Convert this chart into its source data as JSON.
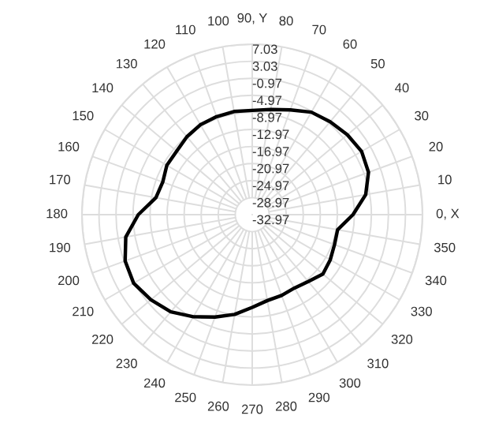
{
  "chart_data": {
    "type": "radar",
    "categories": [
      "90, Y",
      "80",
      "70",
      "60",
      "50",
      "40",
      "30",
      "20",
      "10",
      "0, X",
      "350",
      "340",
      "330",
      "320",
      "310",
      "300",
      "290",
      "280",
      "270",
      "260",
      "250",
      "240",
      "230",
      "220",
      "210",
      "200",
      "190",
      "180",
      "170",
      "160",
      "150",
      "140",
      "130",
      "120",
      "110",
      "100"
    ],
    "series": [
      {
        "color": "#000000",
        "values": [
          -8.5,
          -7.9,
          -6.8,
          -5.2,
          -4.5,
          -3.8,
          -3.3,
          -3.9,
          -5.9,
          -9.3,
          -12.6,
          -12.4,
          -11.8,
          -11.3,
          -12.5,
          -13.1,
          -12.8,
          -12.5,
          -11.2,
          -9.2,
          -7.4,
          -5.3,
          -3.2,
          -1.9,
          -0.8,
          -1.2,
          -2.8,
          -6.2,
          -10.0,
          -10.6,
          -9.8,
          -9.8,
          -9.1,
          -8.6,
          -8.5,
          -8.4
        ]
      }
    ],
    "ylim": [
      -32.97,
      7.03
    ],
    "yticks": [
      7.03,
      3.03,
      -0.97,
      -4.97,
      -8.97,
      -12.97,
      -16.97,
      -20.97,
      -24.97,
      -28.97,
      -32.97
    ],
    "grid": true
  }
}
